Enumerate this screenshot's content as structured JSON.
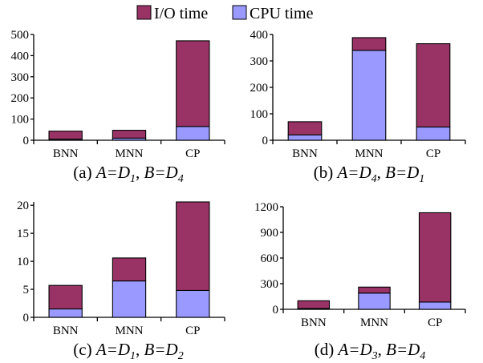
{
  "legend": [
    {
      "label": "I/O time",
      "color": "#993366"
    },
    {
      "label": "CPU time",
      "color": "#9999ff"
    }
  ],
  "chart_data": [
    {
      "type": "bar",
      "stacked": true,
      "categories": [
        "BNN",
        "MNN",
        "CP"
      ],
      "series": [
        {
          "name": "CPU time",
          "values": [
            5,
            10,
            65
          ]
        },
        {
          "name": "I/O time",
          "values": [
            38,
            37,
            405
          ]
        }
      ],
      "ylim": [
        0,
        500
      ],
      "yticks": [
        "0",
        "100",
        "200",
        "300",
        "400",
        "500"
      ],
      "caption": {
        "prefix": "(a) ",
        "A": "A=D",
        "A_sub": "1",
        "sep": ", ",
        "B": "B=D",
        "B_sub": "4"
      }
    },
    {
      "type": "bar",
      "stacked": true,
      "categories": [
        "BNN",
        "MNN",
        "CP"
      ],
      "series": [
        {
          "name": "CPU time",
          "values": [
            20,
            340,
            50
          ]
        },
        {
          "name": "I/O time",
          "values": [
            50,
            48,
            315
          ]
        }
      ],
      "ylim": [
        0,
        400
      ],
      "yticks": [
        "0",
        "100",
        "200",
        "300",
        "400"
      ],
      "caption": {
        "prefix": "(b) ",
        "A": "A=D",
        "A_sub": "4",
        "sep": ", ",
        "B": "B=D",
        "B_sub": "1"
      }
    },
    {
      "type": "bar",
      "stacked": true,
      "categories": [
        "BNN",
        "MNN",
        "CP"
      ],
      "series": [
        {
          "name": "CPU time",
          "values": [
            1.5,
            6.5,
            4.8
          ]
        },
        {
          "name": "I/O time",
          "values": [
            4.2,
            4.1,
            15.8
          ]
        }
      ],
      "ylim": [
        0,
        20.6
      ],
      "yticks": [
        "0",
        "5",
        "10",
        "15",
        "20"
      ],
      "ytick_values": [
        0,
        5,
        10,
        15,
        20
      ],
      "caption": {
        "prefix": "(c) ",
        "A": "A=D",
        "A_sub": "1",
        "sep": ", ",
        "B": "B=D",
        "B_sub": "2"
      }
    },
    {
      "type": "bar",
      "stacked": true,
      "categories": [
        "BNN",
        "MNN",
        "CP"
      ],
      "series": [
        {
          "name": "CPU time",
          "values": [
            10,
            190,
            85
          ]
        },
        {
          "name": "I/O time",
          "values": [
            90,
            70,
            1045
          ]
        }
      ],
      "ylim": [
        0,
        1200
      ],
      "yticks": [
        "0",
        "300",
        "600",
        "900",
        "1200"
      ],
      "caption": {
        "prefix": "(d) ",
        "A": "A=D",
        "A_sub": "3",
        "sep": ", ",
        "B": "B=D",
        "B_sub": "4"
      }
    }
  ]
}
